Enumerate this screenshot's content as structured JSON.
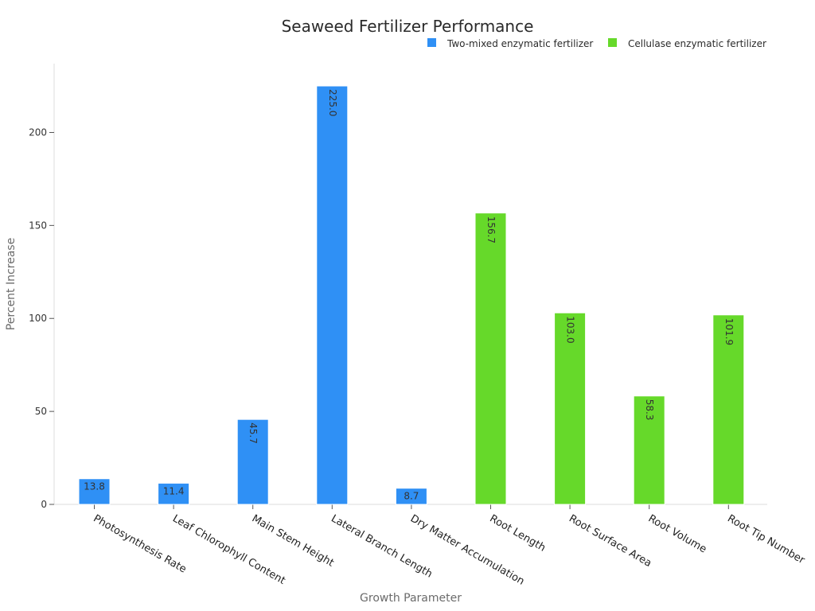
{
  "chart_data": {
    "type": "bar",
    "title": "Seaweed Fertilizer Performance",
    "xlabel": "Growth Parameter",
    "ylabel": "Percent Increase",
    "ylim": [
      0,
      237
    ],
    "yticks": [
      0,
      50,
      100,
      150,
      200
    ],
    "grid": false,
    "legend_position": "top-right",
    "categories": [
      "Photosynthesis Rate",
      "Leaf Chlorophyll Content",
      "Main Stem Height",
      "Lateral Branch Length",
      "Dry Matter Accumulation",
      "Root Length",
      "Root Surface Area",
      "Root Volume",
      "Root Tip Number"
    ],
    "series": [
      {
        "name": "Two-mixed enzymatic fertilizer",
        "color": "#2f90f5",
        "values": [
          13.8,
          11.4,
          45.7,
          225.0,
          8.7,
          null,
          null,
          null,
          null
        ],
        "labels": [
          "13.8",
          "11.4",
          "45.7",
          "225.0",
          "8.7",
          null,
          null,
          null,
          null
        ]
      },
      {
        "name": "Cellulase enzymatic fertilizer",
        "color": "#66d92a",
        "values": [
          null,
          null,
          null,
          null,
          null,
          156.7,
          103.0,
          58.3,
          101.9
        ],
        "labels": [
          null,
          null,
          null,
          null,
          null,
          "156.7",
          "103.0",
          "58.3",
          "101.9"
        ]
      }
    ]
  }
}
